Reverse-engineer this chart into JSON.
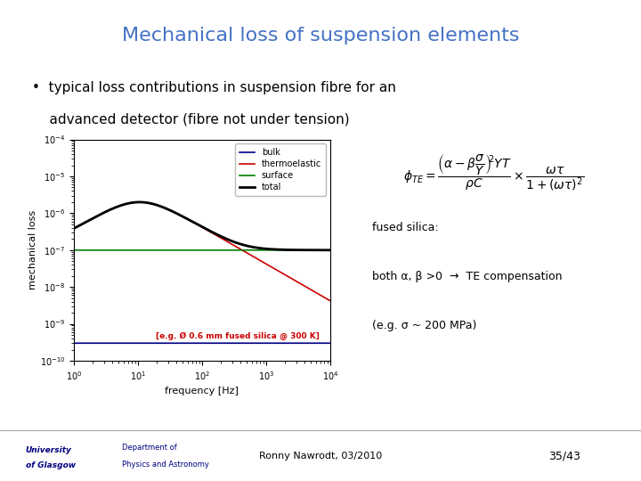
{
  "title": "Mechanical loss of suspension elements",
  "title_color": "#4472C4",
  "background_color": "#FFFFFF",
  "bullet_text_line1": "•  typical loss contributions in suspension fibre for an",
  "bullet_text_line2": "    advanced detector (fibre not under tension)",
  "xlabel": "frequency [Hz]",
  "ylabel": "mechanical loss",
  "xlim_log": [
    0,
    4
  ],
  "ylim_log": [
    -10,
    -4
  ],
  "legend_entries": [
    "bulk",
    "thermoelastic",
    "surface",
    "total"
  ],
  "legend_colors": [
    "#00008B",
    "#CC0000",
    "#008000",
    "#000000"
  ],
  "annotation_text": "[e.g. Ø 0.6 mm fused silica @ 300 K]",
  "annotation_color": "#CC0000",
  "fused_silica_text": "fused silica:",
  "compensation_line1": "both α, β >0  →  TE compensation",
  "compensation_line2": "(e.g. σ ~ 200 MPa)",
  "footer_left": "Ronny Nawrodt, 03/2010",
  "footer_right": "35/43",
  "tau": 0.015,
  "bulk_level": 3e-10,
  "surface_level": 1e-07,
  "te_peak_val": 2e-06
}
